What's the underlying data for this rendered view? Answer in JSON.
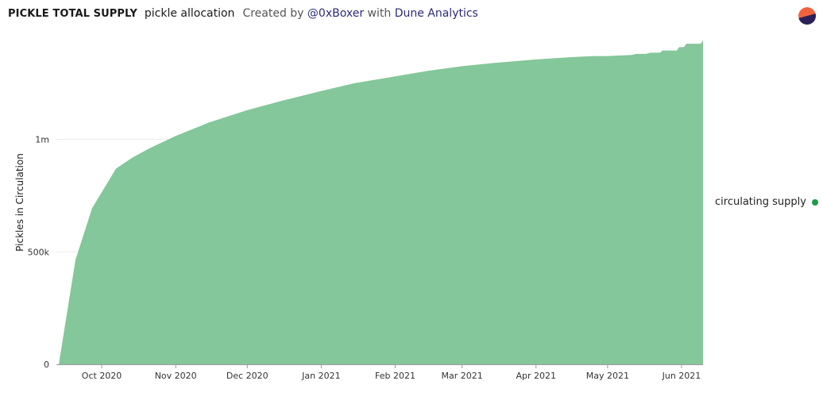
{
  "header": {
    "title": "PICKLE TOTAL SUPPLY",
    "subtitle": "pickle allocation",
    "created_by_prefix": "Created by",
    "author": "@0xBoxer",
    "with_text": "with",
    "platform": "Dune Analytics"
  },
  "colors": {
    "area_fill": "#84c79a",
    "legend_dot": "#1f9a48",
    "logo_top": "#f0623e",
    "logo_bottom": "#2c2059"
  },
  "chart_data": {
    "type": "area",
    "title": "",
    "ylabel": "Pickles in Circulation",
    "xlabel": "",
    "ylim": [
      0,
      1450000
    ],
    "y_ticks": [
      0,
      500000,
      1000000
    ],
    "y_tick_labels": [
      "0",
      "500k",
      "1m"
    ],
    "x_ticks": [
      "2020-10-01",
      "2020-11-01",
      "2020-12-01",
      "2021-01-01",
      "2021-02-01",
      "2021-03-01",
      "2021-04-01",
      "2021-05-01",
      "2021-06-01"
    ],
    "x_tick_labels": [
      "Oct 2020",
      "Nov 2020",
      "Dec 2020",
      "Jan 2021",
      "Feb 2021",
      "Mar 2021",
      "Apr 2021",
      "May 2021",
      "Jun 2021"
    ],
    "xlim": [
      "2020-09-12",
      "2021-06-10"
    ],
    "grid": true,
    "legend_position": "right",
    "series": [
      {
        "name": "circulating supply",
        "x": [
          "2020-09-13",
          "2020-09-20",
          "2020-09-27",
          "2020-10-07",
          "2020-10-14",
          "2020-10-21",
          "2020-11-01",
          "2020-11-15",
          "2020-12-01",
          "2020-12-15",
          "2021-01-01",
          "2021-01-15",
          "2021-02-01",
          "2021-02-15",
          "2021-03-01",
          "2021-03-15",
          "2021-04-01",
          "2021-04-15",
          "2021-04-25",
          "2021-05-01",
          "2021-05-11",
          "2021-05-13",
          "2021-05-17",
          "2021-05-19",
          "2021-05-23",
          "2021-05-24",
          "2021-05-30",
          "2021-05-31",
          "2021-06-02",
          "2021-06-03",
          "2021-06-09",
          "2021-06-10"
        ],
        "values": [
          0,
          465000,
          695000,
          870000,
          920000,
          960000,
          1015000,
          1075000,
          1130000,
          1170000,
          1215000,
          1250000,
          1280000,
          1305000,
          1325000,
          1340000,
          1355000,
          1365000,
          1370000,
          1370000,
          1375000,
          1380000,
          1380000,
          1385000,
          1385000,
          1395000,
          1395000,
          1410000,
          1410000,
          1425000,
          1425000,
          1440000
        ]
      }
    ]
  }
}
